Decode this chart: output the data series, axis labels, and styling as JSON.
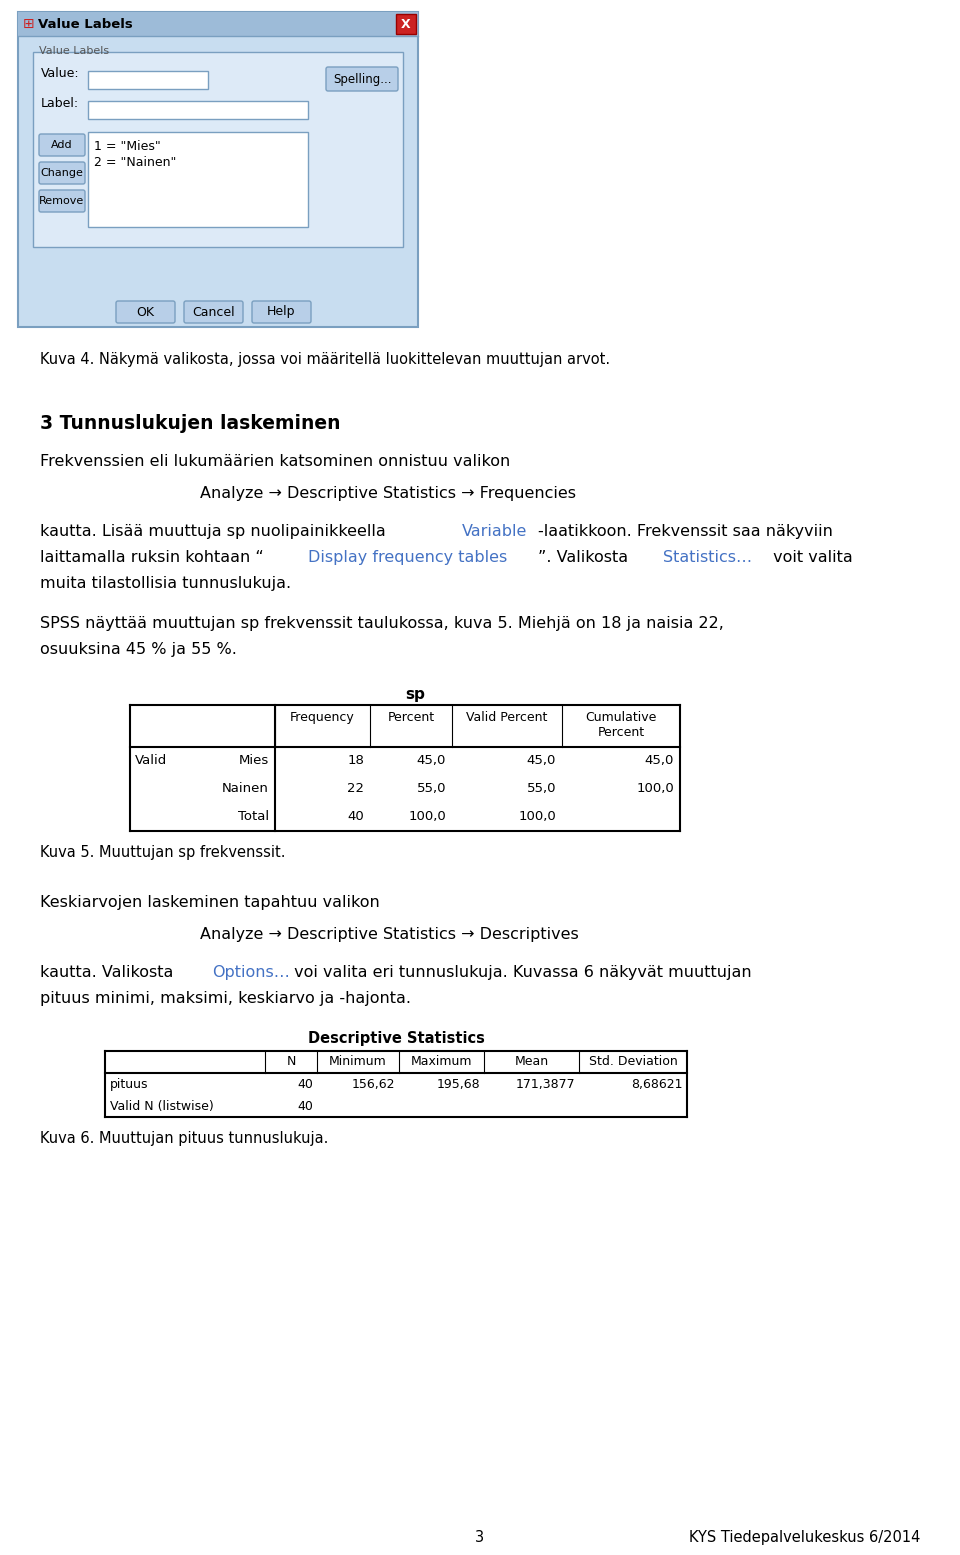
{
  "bg_color": "#ffffff",
  "text_color": "#000000",
  "blue_color": "#4472C4",
  "caption4": "Kuva 4. Näkymä valikosta, jossa voi määritellä luokittelevan muuttujan arvot.",
  "heading": "3 Tunnuslukujen laskeminen",
  "para1": "Frekvenssien eli lukumäärien katsominen onnistuu valikon",
  "menu1": "Analyze → Descriptive Statistics → Frequencies",
  "para2_line1_plain": "kautta. Lisää muuttuja sp nuolipainikkeella ",
  "para2_line1_blue": "Variable",
  "para2_line1_rest": "-laatikkoon. Frekvenssit saa näkyviin",
  "para2_line2_plain1": "laittamalla ruksin kohtaan “",
  "para2_line2_blue1": "Display frequency tables",
  "para2_line2_plain2": "”. Valikosta ",
  "para2_line2_blue2": "Statistics…",
  "para2_line2_plain3": " voit valita",
  "para2_line3": "muita tilastollisia tunnuslukuja.",
  "para3_line1": "SPSS näyttää muuttujan sp frekvenssit taulukossa, kuva 5. Miehjä on 18 ja naisia 22,",
  "para3_line2": "osuuksina 45 % ja 55 %.",
  "tbl1_title": "sp",
  "tbl1_headers": [
    "",
    "Frequency",
    "Percent",
    "Valid Percent",
    "Cumulative\nPercent"
  ],
  "tbl1_row_labels": [
    "Mies",
    "Nainen",
    "Total"
  ],
  "tbl1_valid_label": "Valid",
  "tbl1_data": [
    [
      "18",
      "45,0",
      "45,0",
      "45,0"
    ],
    [
      "22",
      "55,0",
      "55,0",
      "100,0"
    ],
    [
      "40",
      "100,0",
      "100,0",
      ""
    ]
  ],
  "caption5": "Kuva 5. Muuttujan sp frekvenssit.",
  "para4": "Keskiarvojen laskeminen tapahtuu valikon",
  "menu2": "Analyze → Descriptive Statistics → Descriptives",
  "para5_line1_plain1": "kautta. Valikosta ",
  "para5_line1_blue": "Options…",
  "para5_line1_plain2": " voi valita eri tunnuslukuja. Kuvassa 6 näkyvät muuttujan",
  "para5_line2": "pituus minimi, maksimi, keskiarvo ja -hajonta.",
  "tbl2_title": "Descriptive Statistics",
  "tbl2_headers": [
    "",
    "N",
    "Minimum",
    "Maximum",
    "Mean",
    "Std. Deviation"
  ],
  "tbl2_rows": [
    [
      "pituus",
      "40",
      "156,62",
      "195,68",
      "171,3877",
      "8,68621"
    ],
    [
      "Valid N (listwise)",
      "40",
      "",
      "",
      "",
      ""
    ]
  ],
  "caption6": "Kuva 6. Muuttujan pituus tunnuslukuja.",
  "footer_page": "3",
  "footer_right": "KYS Tiedepalvelukeskus 6/2014",
  "dlg_bg": "#c8ddf0",
  "dlg_inner_bg": "#ddeaf7",
  "dlg_border": "#7a9fc0",
  "btn_face": "#b8cfe8",
  "input_face": "#ffffff",
  "titlebar_bg": "#9dbbd8"
}
